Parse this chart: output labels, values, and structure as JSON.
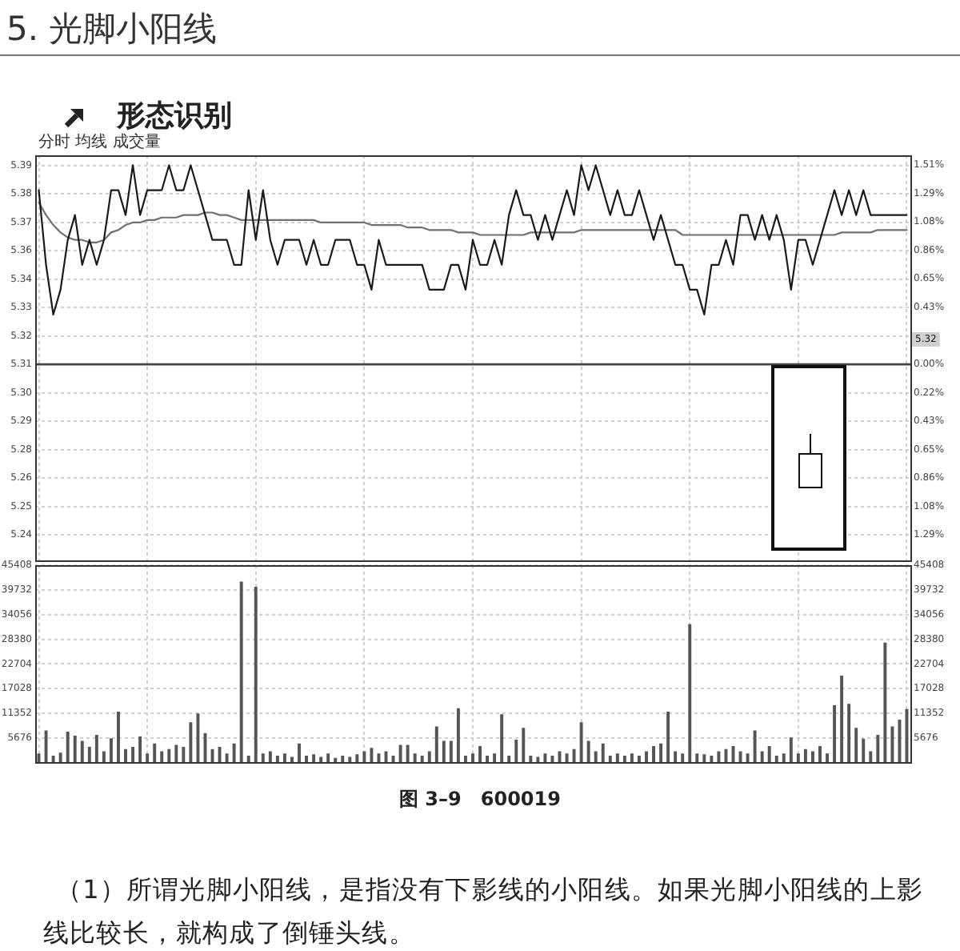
{
  "chart_data": [
    {
      "type": "line",
      "title": "5. 光脚小阳线",
      "subtitle": "形态识别",
      "annotations": [
        "分时 均线 成交量",
        {
          "text": "5.32",
          "y": 5.32
        }
      ],
      "categories": [
        null,
        null,
        null,
        null,
        null,
        null,
        null,
        null,
        null,
        null,
        null,
        null,
        null,
        null,
        null,
        null,
        null,
        null,
        null,
        null,
        null,
        null,
        null,
        null,
        null,
        null,
        null,
        null,
        null,
        null,
        null,
        null,
        null,
        null,
        null,
        null,
        null,
        null,
        null,
        null,
        null,
        null,
        null,
        null,
        null,
        null,
        null,
        null,
        null,
        null,
        null,
        null,
        null,
        null,
        null,
        null,
        null,
        null,
        null,
        null,
        null,
        null,
        null,
        null,
        null,
        null,
        null,
        null,
        null,
        null,
        null,
        null,
        null,
        null,
        null,
        null,
        null,
        null,
        null,
        null,
        null,
        null,
        null,
        null,
        null,
        null,
        null,
        null,
        null,
        null,
        null,
        null,
        null,
        null,
        null,
        null,
        null,
        null,
        null,
        null,
        null,
        null,
        null,
        null,
        null,
        null,
        null,
        null,
        null,
        null,
        null,
        null,
        null,
        null,
        null,
        null,
        null,
        null,
        null,
        null,
        null
      ],
      "series": [
        {
          "color": "#1a1a1a",
          "values": [
            5.38,
            5.35,
            5.33,
            5.34,
            5.36,
            5.37,
            5.35,
            5.36,
            5.35,
            5.36,
            5.38,
            5.38,
            5.37,
            5.39,
            5.37,
            5.38,
            5.38,
            5.38,
            5.39,
            5.38,
            5.38,
            5.39,
            5.38,
            5.37,
            5.36,
            5.36,
            5.36,
            5.35,
            5.35,
            5.38,
            5.36,
            5.38,
            5.36,
            5.35,
            5.36,
            5.36,
            5.36,
            5.35,
            5.36,
            5.35,
            5.35,
            5.36,
            5.36,
            5.36,
            5.35,
            5.35,
            5.34,
            5.36,
            5.35,
            5.35,
            5.35,
            5.35,
            5.35,
            5.35,
            5.34,
            5.34,
            5.34,
            5.35,
            5.35,
            5.34,
            5.36,
            5.35,
            5.35,
            5.36,
            5.35,
            5.37,
            5.38,
            5.37,
            5.37,
            5.36,
            5.37,
            5.36,
            5.37,
            5.38,
            5.37,
            5.39,
            5.38,
            5.39,
            5.38,
            5.37,
            5.38,
            5.37,
            5.37,
            5.38,
            5.37,
            5.36,
            5.37,
            5.36,
            5.35,
            5.35,
            5.34,
            5.34,
            5.33,
            5.35,
            5.35,
            5.36,
            5.35,
            5.37,
            5.37,
            5.36,
            5.37,
            5.36,
            5.37,
            5.36,
            5.34,
            5.36,
            5.36,
            5.35,
            5.36,
            5.37,
            5.38,
            5.37,
            5.38,
            5.37,
            5.38,
            5.37,
            5.37,
            5.37,
            5.37,
            5.37,
            5.37
          ]
        },
        {
          "color": "#707070",
          "values": [
            5.375,
            5.37,
            5.366,
            5.363,
            5.361,
            5.36,
            5.36,
            5.359,
            5.359,
            5.36,
            5.363,
            5.364,
            5.366,
            5.367,
            5.367,
            5.368,
            5.368,
            5.369,
            5.369,
            5.369,
            5.37,
            5.37,
            5.37,
            5.371,
            5.371,
            5.37,
            5.37,
            5.369,
            5.368,
            5.368,
            5.368,
            5.368,
            5.368,
            5.368,
            5.368,
            5.368,
            5.368,
            5.368,
            5.368,
            5.367,
            5.367,
            5.367,
            5.367,
            5.367,
            5.367,
            5.367,
            5.366,
            5.366,
            5.366,
            5.366,
            5.366,
            5.365,
            5.365,
            5.365,
            5.364,
            5.364,
            5.364,
            5.364,
            5.363,
            5.363,
            5.363,
            5.362,
            5.362,
            5.362,
            5.362,
            5.362,
            5.362,
            5.362,
            5.363,
            5.363,
            5.363,
            5.363,
            5.363,
            5.363,
            5.363,
            5.364,
            5.364,
            5.364,
            5.364,
            5.364,
            5.364,
            5.364,
            5.364,
            5.364,
            5.364,
            5.364,
            5.364,
            5.364,
            5.364,
            5.362,
            5.362,
            5.362,
            5.362,
            5.362,
            5.362,
            5.362,
            5.362,
            5.362,
            5.362,
            5.362,
            5.362,
            5.362,
            5.362,
            5.362,
            5.362,
            5.362,
            5.362,
            5.362,
            5.362,
            5.362,
            5.362,
            5.363,
            5.363,
            5.363,
            5.363,
            5.363,
            5.364,
            5.364,
            5.364,
            5.364,
            5.364
          ]
        }
      ],
      "ylim": [
        5.231,
        5.394
      ],
      "yticks": [
        {
          "value": 5.3899,
          "label": "5.39"
        },
        {
          "value": 5.3785,
          "label": "5.38"
        },
        {
          "value": 5.3671,
          "label": "5.37"
        },
        {
          "value": 5.3557,
          "label": "5.36"
        },
        {
          "value": 5.3442,
          "label": "5.34"
        },
        {
          "value": 5.3328,
          "label": "5.33"
        },
        {
          "value": 5.3214,
          "label": "5.32"
        },
        {
          "value": 5.31,
          "label": "5.31"
        },
        {
          "value": 5.2986,
          "label": "5.30"
        },
        {
          "value": 5.2872,
          "label": "5.29"
        },
        {
          "value": 5.2758,
          "label": "5.28"
        },
        {
          "value": 5.2643,
          "label": "5.26"
        },
        {
          "value": 5.2529,
          "label": "5.25"
        },
        {
          "value": 5.2415,
          "label": "5.24"
        }
      ],
      "y2lim": [
        -1.49,
        1.58
      ],
      "y2ticks": [
        {
          "value": 1.51,
          "label": "1.51%"
        },
        {
          "value": 1.29,
          "label": "1.29%"
        },
        {
          "value": 1.08,
          "label": "1.08%"
        },
        {
          "value": 0.86,
          "label": "0.86%"
        },
        {
          "value": 0.65,
          "label": "0.65%"
        },
        {
          "value": 0.43,
          "label": "0.43%"
        },
        {
          "value": 0,
          "label": "0.00%"
        },
        {
          "value": -0.22,
          "label": "0.22%"
        },
        {
          "value": -0.43,
          "label": "0.43%"
        },
        {
          "value": -0.65,
          "label": "0.65%"
        },
        {
          "value": -0.86,
          "label": "0.86%"
        },
        {
          "value": -1.08,
          "label": "1.08%"
        },
        {
          "value": -1.29,
          "label": "1.29%"
        }
      ],
      "ref_lines": [
        {
          "axis": "y",
          "value": 5.31,
          "color": "#444444"
        }
      ],
      "grid": true,
      "marker": "none",
      "line_style": "solid"
    },
    {
      "type": "bar",
      "annotations": [
        "图 3–9　600019",
        "（1）所谓光脚小阳线，是指没有下影线的小阳线。如果光脚小阳线的上影线比较长，就构成了倒锤头线。"
      ],
      "categories": [
        null,
        null,
        null,
        null,
        null,
        null,
        null,
        null,
        null,
        null,
        null,
        null,
        null,
        null,
        null,
        null,
        null,
        null,
        null,
        null,
        null,
        null,
        null,
        null,
        null,
        null,
        null,
        null,
        null,
        null,
        null,
        null,
        null,
        null,
        null,
        null,
        null,
        null,
        null,
        null,
        null,
        null,
        null,
        null,
        null,
        null,
        null,
        null,
        null,
        null,
        null,
        null,
        null,
        null,
        null,
        null,
        null,
        null,
        null,
        null,
        null,
        null,
        null,
        null,
        null,
        null,
        null,
        null,
        null,
        null,
        null,
        null,
        null,
        null,
        null,
        null,
        null,
        null,
        null,
        null,
        null,
        null,
        null,
        null,
        null,
        null,
        null,
        null,
        null,
        null,
        null,
        null,
        null,
        null,
        null,
        null,
        null,
        null,
        null,
        null,
        null,
        null,
        null,
        null,
        null,
        null,
        null,
        null,
        null,
        null,
        null,
        null,
        null,
        null,
        null,
        null,
        null,
        null,
        null,
        null,
        null
      ],
      "series": [
        {
          "color": "#555555",
          "values": [
            2000,
            7300,
            1500,
            2200,
            7000,
            6100,
            4900,
            3500,
            6300,
            2500,
            5500,
            11600,
            3000,
            3500,
            5900,
            2000,
            4300,
            2500,
            3000,
            4000,
            3500,
            9200,
            11200,
            6700,
            3000,
            3500,
            2000,
            4300,
            41500,
            1500,
            40300,
            2000,
            2500,
            1500,
            2000,
            1200,
            4300,
            1500,
            1800,
            1200,
            2000,
            1000,
            1500,
            1200,
            1800,
            2500,
            3300,
            2000,
            2500,
            1500,
            4000,
            4000,
            2000,
            1500,
            2500,
            8200,
            4900,
            4900,
            12400,
            1500,
            2000,
            3700,
            1500,
            2000,
            11000,
            1500,
            5200,
            7900,
            1500,
            1200,
            2000,
            1500,
            2500,
            2000,
            3000,
            9200,
            4900,
            2500,
            4300,
            1500,
            2000,
            1500,
            2000,
            1500,
            2500,
            3700,
            4300,
            11600,
            2500,
            2000,
            31700,
            2000,
            1800,
            1500,
            2500,
            3000,
            3700,
            2500,
            2000,
            7300,
            2500,
            3700,
            1500,
            2000,
            5700,
            2000,
            3000,
            2500,
            3700,
            2000,
            13100,
            19900,
            13400,
            7900,
            5400,
            2500,
            6300,
            27500,
            8200,
            9800,
            12200
          ]
        }
      ],
      "ylim": [
        0,
        45408
      ],
      "yticks": [
        5676,
        11352,
        17028,
        22704,
        28380,
        34056,
        39732,
        45408
      ],
      "y2lim": [
        0,
        45408
      ],
      "y2ticks": [
        5676,
        11352,
        17028,
        22704,
        28380,
        34056,
        39732,
        45408
      ],
      "grid": true
    }
  ]
}
